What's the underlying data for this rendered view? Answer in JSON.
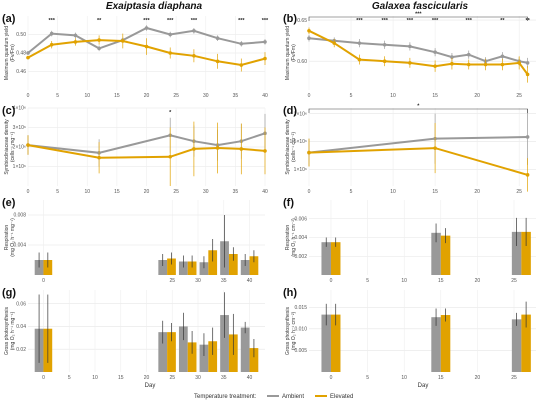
{
  "titles": [
    "Exaiptasia diaphana",
    "Galaxea fascicularis"
  ],
  "colors": {
    "Ambient": "#999999",
    "Elevated": "#e1a200"
  },
  "legend": {
    "title": "Temperature treatment:",
    "items": [
      "Ambient",
      "Elevated"
    ]
  },
  "x_title": "Day",
  "chart_data": [
    {
      "panel": "(a)",
      "type": "line",
      "column": 0,
      "row": 0,
      "ylabel": [
        "Maximum quantum yield",
        "(Fv/Fm)"
      ],
      "xlim": [
        0,
        40
      ],
      "ylim": [
        0.44,
        0.52
      ],
      "yticks": [
        {
          "v": 0.46,
          "t": "0.46"
        },
        {
          "v": 0.48,
          "t": "0.48"
        },
        {
          "v": 0.5,
          "t": "0.50"
        }
      ],
      "xticks": [
        0,
        5,
        10,
        15,
        20,
        25,
        30,
        35,
        40
      ],
      "x": [
        0,
        4,
        8,
        12,
        16,
        20,
        24,
        28,
        32,
        36,
        40
      ],
      "series": [
        {
          "name": "Ambient",
          "values": [
            0.48,
            0.501,
            0.499,
            0.485,
            0.494,
            0.507,
            0.5,
            0.504,
            0.496,
            0.49,
            0.492
          ],
          "err": [
            0.002,
            0.003,
            0.003,
            0.003,
            0.003,
            0.003,
            0.003,
            0.003,
            0.003,
            0.003,
            0.003
          ]
        },
        {
          "name": "Elevated",
          "values": [
            0.475,
            0.489,
            0.492,
            0.494,
            0.493,
            0.487,
            0.48,
            0.477,
            0.471,
            0.467,
            0.474
          ],
          "err": [
            0.002,
            0.004,
            0.004,
            0.005,
            0.008,
            0.009,
            0.006,
            0.007,
            0.008,
            0.007,
            0.007
          ]
        }
      ],
      "stars": [
        {
          "x": 4,
          "t": "***"
        },
        {
          "x": 12,
          "t": "**"
        },
        {
          "x": 20,
          "t": "***"
        },
        {
          "x": 24,
          "t": "***"
        },
        {
          "x": 28,
          "t": "***"
        },
        {
          "x": 36,
          "t": "***"
        },
        {
          "x": 40,
          "t": "***"
        }
      ]
    },
    {
      "panel": "(b)",
      "type": "line",
      "column": 1,
      "row": 0,
      "ylabel": [
        "Maximum quantum yield",
        "(Fv/Fm)"
      ],
      "xlim": [
        0,
        27
      ],
      "ylim": [
        0.565,
        0.655
      ],
      "yticks": [
        {
          "v": 0.6,
          "t": "0.60"
        },
        {
          "v": 0.65,
          "t": "0.65"
        }
      ],
      "xticks": [
        0,
        5,
        10,
        15,
        20,
        25
      ],
      "x": [
        0,
        3,
        6,
        9,
        12,
        15,
        17,
        19,
        21,
        23,
        25,
        26
      ],
      "series": [
        {
          "name": "Ambient",
          "values": [
            0.628,
            0.625,
            0.622,
            0.62,
            0.618,
            0.611,
            0.605,
            0.608,
            0.6,
            0.606,
            0.6,
            0.598
          ],
          "err": [
            0.004,
            0.004,
            0.005,
            0.005,
            0.005,
            0.005,
            0.005,
            0.005,
            0.005,
            0.005,
            0.005,
            0.006
          ]
        },
        {
          "name": "Elevated",
          "values": [
            0.637,
            0.622,
            0.602,
            0.6,
            0.598,
            0.594,
            0.597,
            0.596,
            0.596,
            0.596,
            0.598,
            0.584
          ],
          "err": [
            0.004,
            0.005,
            0.006,
            0.006,
            0.006,
            0.007,
            0.007,
            0.006,
            0.007,
            0.007,
            0.008,
            0.01
          ]
        }
      ],
      "stars": [
        {
          "x": 6,
          "t": "***"
        },
        {
          "x": 9,
          "t": "***"
        },
        {
          "x": 12,
          "t": "***"
        },
        {
          "x": 15,
          "t": "***"
        },
        {
          "x": 19,
          "t": "***"
        },
        {
          "x": 23,
          "t": "**"
        },
        {
          "x": 26,
          "t": "**"
        }
      ],
      "bracket": {
        "x0": 0,
        "x1": 26,
        "t": "***"
      }
    },
    {
      "panel": "(c)",
      "type": "line",
      "column": 0,
      "row": 1,
      "ylabel": [
        "Symbiodiniaceae density",
        "(cells⁻¹ mg⁻¹)"
      ],
      "xlim": [
        0,
        40
      ],
      "ylim": [
        0,
        4000000
      ],
      "yticks": [
        {
          "v": 1000000,
          "t": "1×10⁶"
        },
        {
          "v": 2000000,
          "t": "2×10⁶"
        },
        {
          "v": 3000000,
          "t": "3×10⁶"
        },
        {
          "v": 4000000,
          "t": "4×10⁶"
        }
      ],
      "xticks": [
        0,
        5,
        10,
        15,
        20,
        25,
        30,
        35,
        40
      ],
      "x": [
        0,
        12,
        24,
        28,
        32,
        36,
        40
      ],
      "series": [
        {
          "name": "Ambient",
          "values": [
            2100000,
            1700000,
            2600000,
            2300000,
            2100000,
            2300000,
            2700000
          ],
          "err": [
            500000,
            700000,
            900000,
            800000,
            800000,
            900000,
            1000000
          ]
        },
        {
          "name": "Elevated",
          "values": [
            2100000,
            1450000,
            1500000,
            1900000,
            1950000,
            1900000,
            1800000
          ],
          "err": [
            500000,
            800000,
            1500000,
            1400000,
            1300000,
            1300000,
            1200000
          ]
        }
      ],
      "stars": [
        {
          "x": 24,
          "t": "*"
        }
      ]
    },
    {
      "panel": "(d)",
      "type": "line",
      "column": 1,
      "row": 1,
      "ylabel": [
        "Symbiodiniaceae density",
        "(cells⁻¹ cm⁻²)"
      ],
      "xlim": [
        0,
        27
      ],
      "ylim": [
        700000,
        2100000
      ],
      "yticks": [
        {
          "v": 1000000,
          "t": "1×10⁶"
        },
        {
          "v": 1500000,
          "t": "1.5×10⁶"
        },
        {
          "v": 2000000,
          "t": "2×10⁶"
        }
      ],
      "xticks": [
        0,
        5,
        10,
        15,
        20,
        25
      ],
      "x": [
        0,
        15,
        26
      ],
      "series": [
        {
          "name": "Ambient",
          "values": [
            1300000,
            1550000,
            1580000
          ],
          "err": [
            250000,
            450000,
            500000
          ]
        },
        {
          "name": "Elevated",
          "values": [
            1300000,
            1380000,
            900000
          ],
          "err": [
            250000,
            450000,
            300000
          ]
        }
      ],
      "stars": [],
      "bracket": {
        "x0": 0,
        "x1": 26,
        "t": "*"
      }
    },
    {
      "panel": "(e)",
      "type": "bar",
      "column": 0,
      "row": 2,
      "ylabel": [
        "Respiration",
        "(mg O₂ h⁻¹ mg⁻¹)"
      ],
      "xlim": [
        -3,
        43
      ],
      "ylim": [
        0,
        0.01
      ],
      "yticks": [
        {
          "v": 0.004,
          "t": "0.004"
        },
        {
          "v": 0.008,
          "t": "0.008"
        }
      ],
      "xticks": [
        0,
        25,
        30,
        35,
        40
      ],
      "x": [
        0,
        24,
        28,
        32,
        36,
        40
      ],
      "series": [
        {
          "name": "Ambient",
          "values": [
            0.002,
            0.002,
            0.0018,
            0.0017,
            0.0045,
            0.002
          ],
          "err": [
            0.001,
            0.0008,
            0.0008,
            0.0008,
            0.0035,
            0.0008
          ]
        },
        {
          "name": "Elevated",
          "values": [
            0.002,
            0.0022,
            0.0018,
            0.0033,
            0.0028,
            0.0025
          ],
          "err": [
            0.001,
            0.0008,
            0.0008,
            0.0015,
            0.0009,
            0.0008
          ]
        }
      ]
    },
    {
      "panel": "(f)",
      "type": "bar",
      "column": 1,
      "row": 2,
      "ylabel": [
        "Respiration",
        "(mg O₂ h⁻¹ cm⁻²)"
      ],
      "xlim": [
        -3,
        28
      ],
      "ylim": [
        0,
        0.008
      ],
      "yticks": [
        {
          "v": 0.002,
          "t": "0.002"
        },
        {
          "v": 0.004,
          "t": "0.004"
        },
        {
          "v": 0.006,
          "t": "0.006"
        }
      ],
      "xticks": [
        0,
        5,
        10,
        15,
        20,
        25
      ],
      "x": [
        0,
        15,
        26
      ],
      "series": [
        {
          "name": "Ambient",
          "values": [
            0.0035,
            0.0045,
            0.0046
          ],
          "err": [
            0.0005,
            0.001,
            0.0015
          ]
        },
        {
          "name": "Elevated",
          "values": [
            0.0035,
            0.0042,
            0.0046
          ],
          "err": [
            0.0005,
            0.0008,
            0.0015
          ]
        }
      ]
    },
    {
      "panel": "(g)",
      "type": "bar",
      "column": 0,
      "row": 3,
      "ylabel": [
        "Gross photosynthesis",
        "(mg O₂ h⁻¹ mg⁻¹)"
      ],
      "xlim": [
        -3,
        43
      ],
      "ylim": [
        0,
        0.072
      ],
      "yticks": [
        {
          "v": 0.02,
          "t": "0.02"
        },
        {
          "v": 0.04,
          "t": "0.04"
        },
        {
          "v": 0.06,
          "t": "0.06"
        }
      ],
      "xticks": [
        0,
        5,
        10,
        15,
        20,
        25,
        30,
        35,
        40
      ],
      "x": [
        0,
        24,
        28,
        32,
        36,
        40
      ],
      "series": [
        {
          "name": "Ambient",
          "values": [
            0.038,
            0.035,
            0.04,
            0.024,
            0.05,
            0.039
          ],
          "err": [
            0.03,
            0.01,
            0.012,
            0.01,
            0.02,
            0.005
          ]
        },
        {
          "name": "Elevated",
          "values": [
            0.038,
            0.035,
            0.026,
            0.027,
            0.033,
            0.021
          ],
          "err": [
            0.03,
            0.008,
            0.01,
            0.012,
            0.018,
            0.008
          ]
        }
      ]
    },
    {
      "panel": "(h)",
      "type": "bar",
      "column": 1,
      "row": 3,
      "ylabel": [
        "Gross photosynthesis",
        "(mg O₂ h⁻¹ cm⁻²)"
      ],
      "xlim": [
        -3,
        28
      ],
      "ylim": [
        0,
        0.019
      ],
      "yticks": [
        {
          "v": 0.005,
          "t": "0.005"
        },
        {
          "v": 0.01,
          "t": "0.010"
        },
        {
          "v": 0.015,
          "t": "0.015"
        }
      ],
      "xticks": [
        0,
        5,
        10,
        15,
        20,
        25
      ],
      "x": [
        0,
        15,
        26
      ],
      "series": [
        {
          "name": "Ambient",
          "values": [
            0.0133,
            0.0127,
            0.0122
          ],
          "err": [
            0.0025,
            0.002,
            0.0015
          ]
        },
        {
          "name": "Elevated",
          "values": [
            0.0133,
            0.0132,
            0.0133
          ],
          "err": [
            0.0025,
            0.0015,
            0.003
          ]
        }
      ]
    }
  ]
}
